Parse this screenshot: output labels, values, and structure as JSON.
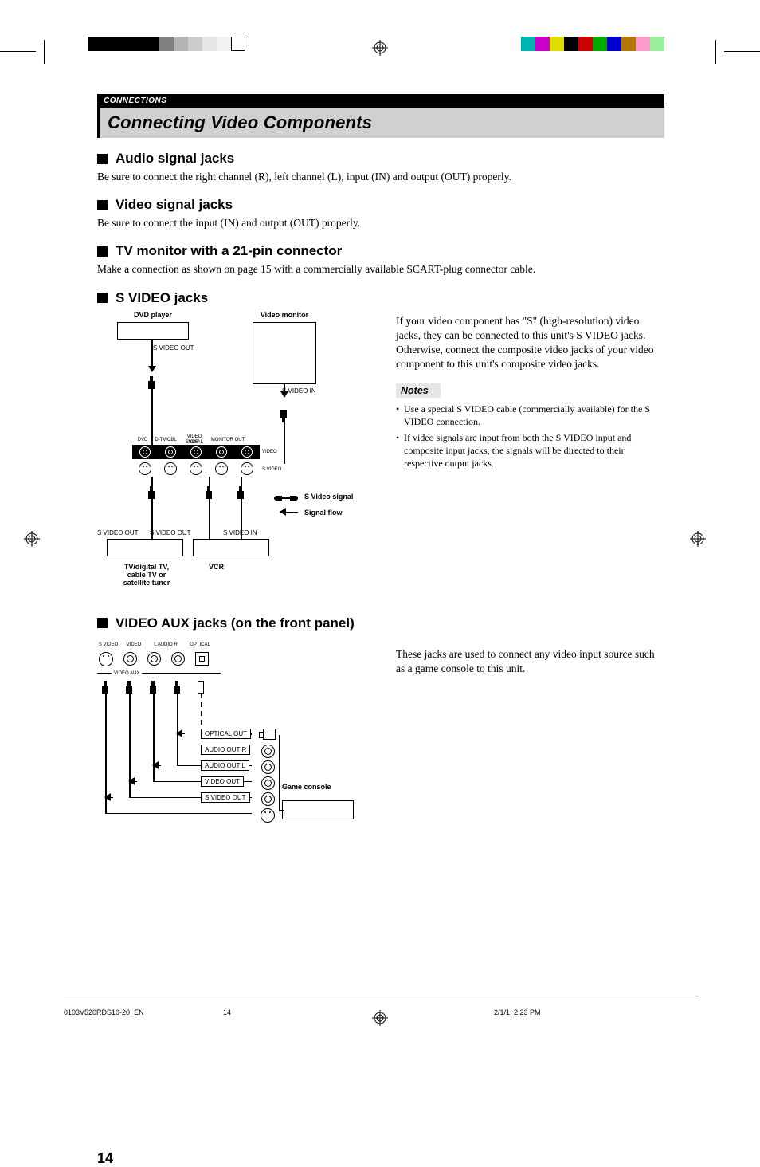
{
  "printmarks": {
    "left_bars": [
      "#000000",
      "#000000",
      "#000000",
      "#000000",
      "#000000",
      "#808080",
      "#b3b3b3",
      "#cccccc",
      "#e6e6e6",
      "#f2f2f2",
      "#ffffff"
    ],
    "right_bars": [
      "#00b3b3",
      "#cc00cc",
      "#dddd00",
      "#000000",
      "#cc0000",
      "#00aa00",
      "#0000cc",
      "#b37700",
      "#ff99cc",
      "#99ee99"
    ]
  },
  "header": {
    "breadcrumb": "CONNECTIONS",
    "title": "Connecting Video Components"
  },
  "sections": {
    "audio": {
      "heading": "Audio signal jacks",
      "body": "Be sure to connect the right channel (R), left channel (L), input (IN) and output (OUT) properly."
    },
    "video": {
      "heading": "Video signal jacks",
      "body": "Be sure to connect the input (IN) and output (OUT) properly."
    },
    "tvmon": {
      "heading": "TV monitor with a 21-pin connector",
      "body": "Make a connection as shown on page 15 with a commercially available SCART-plug connector cable."
    },
    "svideo": {
      "heading": "S VIDEO jacks",
      "body": "If your video component has \"S\" (high-resolution) video jacks, they can be connected to this unit's S VIDEO jacks. Otherwise, connect the composite video jacks of your video component to this unit's composite video jacks.",
      "notes_label": "Notes",
      "notes": [
        "Use a special S VIDEO cable (commercially available) for the S VIDEO connection.",
        "If video signals are input from both the S VIDEO input and composite input jacks, the signals will be directed to their respective output jacks."
      ],
      "diagram": {
        "dvd_label": "DVD player",
        "monitor_label": "Video monitor",
        "svideo_out": "S VIDEO OUT",
        "svideo_in": "S VIDEO IN",
        "row_labels": [
          "DVD",
          "D-TV/CBL",
          "VCR",
          "MONITOR OUT"
        ],
        "row_top_label": "VIDEO SIGNAL",
        "video_label": "VIDEO",
        "svideo_label": "S VIDEO",
        "legend_svideo": "S Video signal",
        "legend_flow": "Signal flow",
        "dtv_label": "TV/digital TV, cable TV or satellite tuner",
        "vcr_label": "VCR",
        "svideo_out2": "S VIDEO OUT",
        "svideo_out3": "S VIDEO OUT",
        "svideo_in2": "S VIDEO IN"
      }
    },
    "aux": {
      "heading": "VIDEO AUX jacks (on the front panel)",
      "body": "These jacks are used to connect any video input source such as a game console to this unit.",
      "diagram": {
        "top_labels": [
          "S VIDEO",
          "VIDEO",
          "L  AUDIO  R",
          "OPTICAL"
        ],
        "strip_label": "VIDEO AUX",
        "optical_out": "OPTICAL OUT",
        "audio_r": "AUDIO OUT R",
        "audio_l": "AUDIO OUT L",
        "video_out": "VIDEO OUT",
        "svideo_out": "S VIDEO OUT",
        "console": "Game console"
      }
    }
  },
  "page_number": "14",
  "footer": {
    "doc": "0103V520RDS10-20_EN",
    "page": "14",
    "date": "2/1/1, 2:23 PM"
  },
  "colors": {
    "title_bg": "#d0d0d0",
    "notes_bg": "#e6e6e6"
  }
}
